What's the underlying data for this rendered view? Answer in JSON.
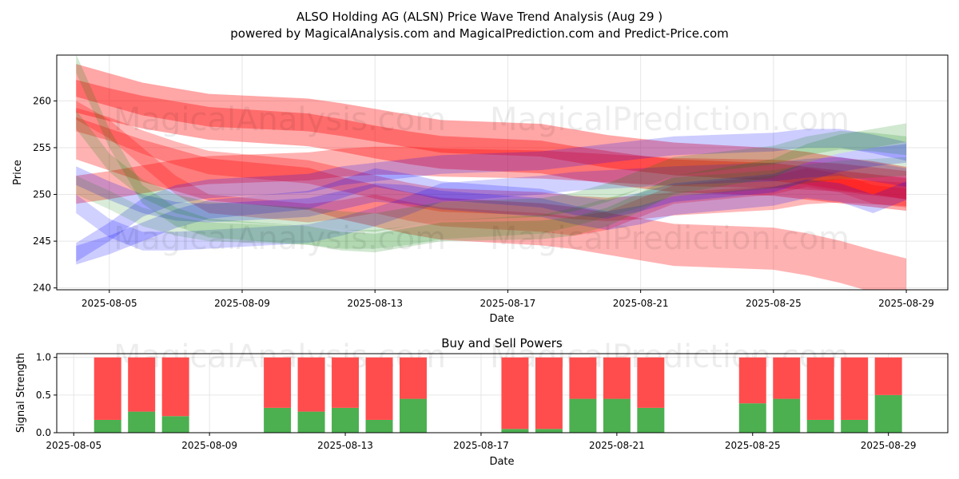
{
  "header": {
    "title": "ALSO Holding AG (ALSN) Price Wave Trend Analysis (Aug 29 )",
    "subtitle": "powered by MagicalAnalysis.com and MagicalPrediction.com and Predict-Price.com"
  },
  "watermarks": [
    "MagicalAnalysis.com",
    "MagicalPrediction.com"
  ],
  "colors": {
    "red_band": "#ff0000",
    "blue_band": "#0000ff",
    "green_band": "#008000",
    "buy_bar": "#4caf50",
    "sell_bar": "#ff4d4d",
    "grid": "#e6e6e6"
  },
  "chart_data": [
    {
      "type": "area",
      "title": "",
      "xlabel": "Date",
      "ylabel": "Price",
      "x_ticks": [
        "2025-08-05",
        "2025-08-09",
        "2025-08-13",
        "2025-08-17",
        "2025-08-21",
        "2025-08-25",
        "2025-08-29"
      ],
      "y_ticks": [
        240,
        245,
        250,
        255,
        260
      ],
      "xlim": [
        "2025-08-03T10:00",
        "2025-08-30T06:00"
      ],
      "ylim": [
        239.8,
        264.9
      ],
      "grid": true,
      "x_dates": [
        "2025-08-04",
        "2025-08-05",
        "2025-08-06",
        "2025-08-07",
        "2025-08-08",
        "2025-08-11",
        "2025-08-12",
        "2025-08-13",
        "2025-08-14",
        "2025-08-15",
        "2025-08-18",
        "2025-08-19",
        "2025-08-20",
        "2025-08-21",
        "2025-08-22",
        "2025-08-25",
        "2025-08-26",
        "2025-08-27",
        "2025-08-28",
        "2025-08-29"
      ],
      "series": [
        {
          "color": "red",
          "opacity": 0.35,
          "width": 3.5,
          "values": [
            262.2,
            261.2,
            260.2,
            259.6,
            259.0,
            258.5,
            258.0,
            257.4,
            256.8,
            256.2,
            255.8,
            255.2,
            254.6,
            254.2,
            253.8,
            253.2,
            252.8,
            252.2,
            251.8,
            251.2
          ]
        },
        {
          "color": "red",
          "opacity": 0.35,
          "width": 3.5,
          "values": [
            260.5,
            259.6,
            258.8,
            258.2,
            257.6,
            256.9,
            256.3,
            255.6,
            255.0,
            254.5,
            254.0,
            253.4,
            252.9,
            252.4,
            252.0,
            251.6,
            251.2,
            250.8,
            250.4,
            250.0
          ]
        },
        {
          "color": "red",
          "opacity": 0.3,
          "width": 4.5,
          "values": [
            256.0,
            254.8,
            253.6,
            252.6,
            251.6,
            250.6,
            249.6,
            248.8,
            248.0,
            247.4,
            246.8,
            246.4,
            245.8,
            245.2,
            244.6,
            244.2,
            243.6,
            242.8,
            241.8,
            240.9
          ]
        },
        {
          "color": "red",
          "opacity": 0.3,
          "width": 3.0,
          "values": [
            250.5,
            251.0,
            251.6,
            252.2,
            252.6,
            253.0,
            253.4,
            253.6,
            253.6,
            253.4,
            253.2,
            253.0,
            252.8,
            252.6,
            252.4,
            252.2,
            252.0,
            251.8,
            251.4,
            251.0
          ]
        },
        {
          "color": "red",
          "opacity": 0.28,
          "width": 2.5,
          "values": [
            258.0,
            257.0,
            255.6,
            254.4,
            253.4,
            252.4,
            251.6,
            250.8,
            250.0,
            249.4,
            249.0,
            248.6,
            248.4,
            248.6,
            249.0,
            249.6,
            250.2,
            250.4,
            250.2,
            250.0
          ]
        },
        {
          "color": "red",
          "opacity": 0.25,
          "width": 2.0,
          "values": [
            259.0,
            257.0,
            254.0,
            251.0,
            249.0,
            248.0,
            248.4,
            249.0,
            248.2,
            247.6,
            247.0,
            246.6,
            247.2,
            248.6,
            250.0,
            251.0,
            251.8,
            251.2,
            250.0,
            249.6
          ]
        },
        {
          "color": "blue",
          "opacity": 0.2,
          "width": 2.0,
          "values": [
            243.5,
            244.6,
            246.0,
            247.4,
            248.4,
            249.4,
            250.6,
            251.8,
            251.2,
            250.4,
            249.6,
            248.8,
            248.4,
            249.2,
            250.2,
            251.2,
            252.4,
            253.4,
            254.0,
            254.4
          ]
        },
        {
          "color": "blue",
          "opacity": 0.2,
          "width": 2.0,
          "values": [
            252.0,
            250.4,
            249.0,
            248.2,
            248.0,
            248.6,
            249.4,
            250.2,
            250.0,
            249.4,
            248.6,
            247.8,
            247.2,
            247.8,
            248.8,
            249.8,
            250.6,
            250.2,
            249.0,
            250.4
          ]
        },
        {
          "color": "blue",
          "opacity": 0.2,
          "width": 2.0,
          "values": [
            243.8,
            246.0,
            248.6,
            250.0,
            250.6,
            251.2,
            252.0,
            252.4,
            252.8,
            253.2,
            253.6,
            254.0,
            254.4,
            254.8,
            255.2,
            255.6,
            256.0,
            256.0,
            255.4,
            254.6
          ]
        },
        {
          "color": "blue",
          "opacity": 0.18,
          "width": 2.0,
          "values": [
            249.0,
            246.4,
            245.0,
            245.0,
            245.2,
            245.8,
            246.6,
            247.6,
            248.8,
            250.2,
            251.0,
            251.4,
            251.6,
            251.8,
            252.0,
            252.4,
            252.8,
            253.0,
            252.4,
            251.8
          ]
        },
        {
          "color": "green",
          "opacity": 0.18,
          "width": 2.0,
          "values": [
            264.0,
            256.0,
            250.0,
            247.6,
            246.4,
            245.6,
            245.0,
            244.8,
            245.4,
            246.0,
            246.2,
            246.6,
            247.6,
            249.2,
            251.0,
            252.8,
            254.4,
            255.4,
            256.0,
            256.6
          ]
        },
        {
          "color": "green",
          "opacity": 0.18,
          "width": 2.0,
          "values": [
            258.0,
            253.4,
            250.6,
            249.0,
            248.2,
            247.6,
            247.2,
            247.0,
            247.6,
            248.2,
            248.6,
            249.2,
            250.2,
            251.6,
            253.0,
            254.2,
            255.2,
            255.8,
            255.6,
            255.2
          ]
        },
        {
          "color": "green",
          "opacity": 0.15,
          "width": 2.0,
          "values": [
            251.0,
            249.4,
            247.6,
            246.6,
            246.0,
            245.6,
            245.2,
            245.2,
            245.6,
            246.2,
            246.8,
            247.6,
            248.6,
            249.6,
            250.8,
            251.6,
            252.2,
            252.6,
            252.8,
            253.0
          ]
        }
      ]
    },
    {
      "type": "bar",
      "title": "Buy and Sell Powers",
      "xlabel": "Date",
      "ylabel": "Signal Strength",
      "x_ticks": [
        "2025-08-05",
        "2025-08-09",
        "2025-08-13",
        "2025-08-17",
        "2025-08-21",
        "2025-08-25",
        "2025-08-29"
      ],
      "y_ticks": [
        "0.0",
        "0.5",
        "1.0"
      ],
      "xlim": [
        "2025-08-04T12:00",
        "2025-08-30T18:00"
      ],
      "ylim": [
        0,
        1.05
      ],
      "grid": true,
      "categories": [
        "2025-08-06",
        "2025-08-07",
        "2025-08-08",
        "2025-08-11",
        "2025-08-12",
        "2025-08-13",
        "2025-08-14",
        "2025-08-15",
        "2025-08-18",
        "2025-08-19",
        "2025-08-20",
        "2025-08-21",
        "2025-08-22",
        "2025-08-25",
        "2025-08-26",
        "2025-08-27",
        "2025-08-28",
        "2025-08-29"
      ],
      "series": [
        {
          "name": "Buy",
          "values": [
            0.17,
            0.28,
            0.22,
            0.33,
            0.28,
            0.33,
            0.17,
            0.45,
            0.05,
            0.05,
            0.45,
            0.45,
            0.33,
            0.39,
            0.45,
            0.17,
            0.17,
            0.5
          ]
        },
        {
          "name": "Sell",
          "values": [
            0.83,
            0.72,
            0.78,
            0.67,
            0.72,
            0.67,
            0.83,
            0.55,
            0.95,
            0.95,
            0.55,
            0.55,
            0.67,
            0.61,
            0.55,
            0.83,
            0.83,
            0.5
          ]
        }
      ]
    }
  ]
}
